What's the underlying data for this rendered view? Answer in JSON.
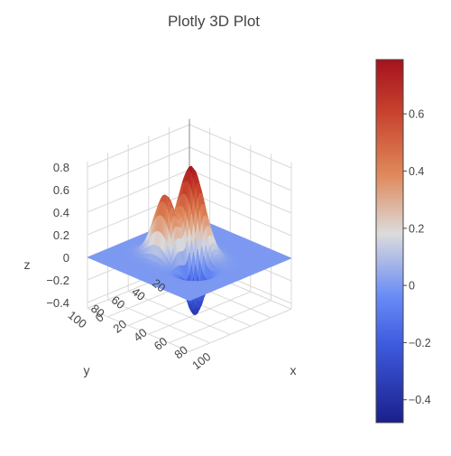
{
  "chart_data": {
    "type": "surface3d",
    "title": "Plotly 3D Plot",
    "axes": {
      "x": {
        "label": "x",
        "range": [
          0,
          100
        ],
        "ticks": [
          "0",
          "20",
          "40",
          "60",
          "80",
          "100"
        ]
      },
      "y": {
        "label": "y",
        "range": [
          0,
          100
        ],
        "ticks": [
          "20",
          "40",
          "60",
          "80",
          "100"
        ]
      },
      "z": {
        "label": "z",
        "range": [
          -0.45,
          0.85
        ],
        "ticks": [
          "0.8",
          "0.6",
          "0.4",
          "0.2",
          "0",
          "−0.2",
          "−0.4"
        ]
      }
    },
    "grid": true,
    "surface": {
      "description": "Sum of Gaussian peaks and troughs over a 100x100 grid",
      "peaks": [
        {
          "x": 48,
          "y": 46,
          "amplitude": 0.79,
          "sigma_x": 11,
          "sigma_y": 7
        },
        {
          "x": 40,
          "y": 64,
          "amplitude": 0.55,
          "sigma_x": 10,
          "sigma_y": 5
        }
      ],
      "troughs": [
        {
          "x": 65,
          "y": 60,
          "amplitude": -0.45,
          "sigma_x": 7,
          "sigma_y": 7
        },
        {
          "x": 33,
          "y": 28,
          "amplitude": -0.12,
          "sigma_x": 6,
          "sigma_y": 6
        }
      ]
    },
    "colorbar": {
      "colorscale": "coolwarm",
      "range": [
        -0.48,
        0.79
      ],
      "ticks": [
        "0.6",
        "0.4",
        "0.2",
        "0",
        "−0.2",
        "−0.4"
      ],
      "tick_values": [
        0.6,
        0.4,
        0.2,
        0,
        -0.2,
        -0.4
      ],
      "colors": {
        "low": "#1a1f8c",
        "mid_low": "#5a7bea",
        "mid": "#dcdcdc",
        "mid_high": "#e08a5c",
        "high": "#a5121e"
      }
    }
  }
}
